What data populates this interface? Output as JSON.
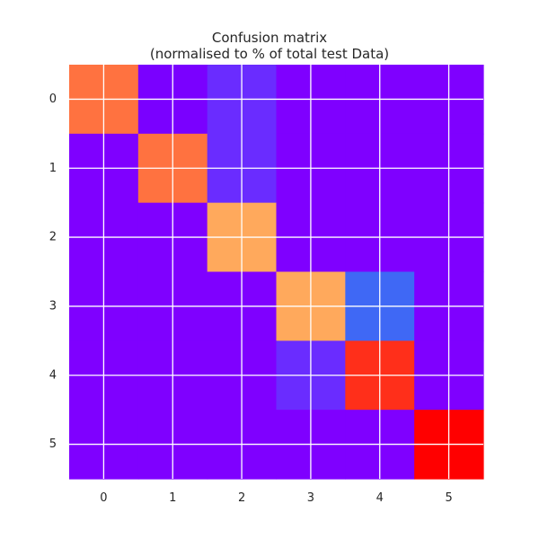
{
  "chart_data": {
    "type": "heatmap",
    "title": "Confusion matrix",
    "subtitle": "(normalised to % of total test Data)",
    "xlabel": "",
    "ylabel": "",
    "x_categories": [
      "0",
      "1",
      "2",
      "3",
      "4",
      "5"
    ],
    "y_categories": [
      "0",
      "1",
      "2",
      "3",
      "4",
      "5"
    ],
    "cell_colors": [
      [
        "#ff7240",
        "#7a00ff",
        "#6a2cff",
        "#7f00ff",
        "#7f00ff",
        "#7f00ff"
      ],
      [
        "#7f00ff",
        "#ff7240",
        "#6a2cff",
        "#7f00ff",
        "#7f00ff",
        "#7f00ff"
      ],
      [
        "#7f00ff",
        "#7f00ff",
        "#ffa95c",
        "#7f00ff",
        "#7f00ff",
        "#7f00ff"
      ],
      [
        "#7f00ff",
        "#7f00ff",
        "#7f00ff",
        "#ffa95c",
        "#3f68f5",
        "#7f00ff"
      ],
      [
        "#7f00ff",
        "#7f00ff",
        "#7f00ff",
        "#6a2cff",
        "#ff2f1a",
        "#7f00ff"
      ],
      [
        "#7f00ff",
        "#7f00ff",
        "#7f00ff",
        "#7f00ff",
        "#7f00ff",
        "#ff0000"
      ]
    ],
    "grid": true,
    "grid_color": "#ffffff"
  }
}
